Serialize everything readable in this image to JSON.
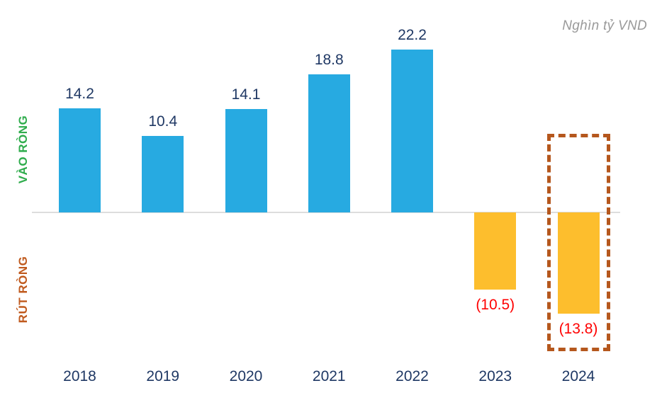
{
  "chart_data": {
    "type": "bar",
    "title": "Nghìn tỷ VND",
    "categories": [
      "2018",
      "2019",
      "2020",
      "2021",
      "2022",
      "2023",
      "2024"
    ],
    "values": [
      14.2,
      10.4,
      14.1,
      18.8,
      22.2,
      -10.5,
      -13.8
    ],
    "value_labels": [
      "14.2",
      "10.4",
      "14.1",
      "18.8",
      "22.2",
      "(10.5)",
      "(13.8)"
    ],
    "positive_region_label": "VÀO RÒNG",
    "negative_region_label": "RÚT RÒNG",
    "highlighted_category": "2024",
    "xlabel": "",
    "ylabel": "",
    "ylim": [
      -16,
      24
    ],
    "grid": false,
    "legend": false
  },
  "colors": {
    "positive_bar": "#27aae1",
    "negative_bar": "#fdbe2d",
    "positive_value_text": "#1f3864",
    "negative_value_text": "#ff0000",
    "x_tick_text": "#1f3864",
    "inflow_label": "#2fac4c",
    "outflow_label": "#c05a1e",
    "highlight_border": "#b5571d",
    "baseline": "#dddddd",
    "unit_text": "#9a9a9a"
  }
}
